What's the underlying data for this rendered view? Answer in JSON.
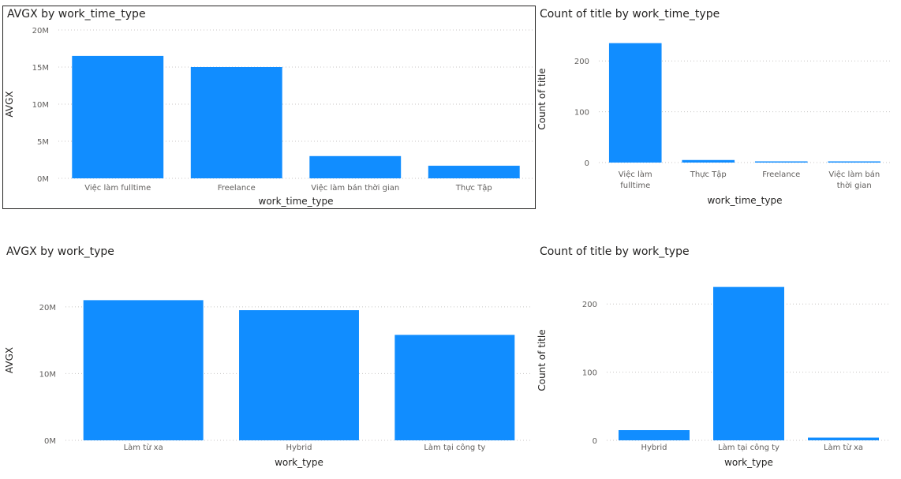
{
  "chart_data": [
    {
      "type": "bar",
      "title": "AVGX by work_time_type",
      "xlabel": "work_time_type",
      "ylabel": "AVGX",
      "categories": [
        "Việc làm fulltime",
        "Freelance",
        "Việc làm bán thời gian",
        "Thực Tập"
      ],
      "values": [
        16500000,
        15000000,
        3000000,
        1700000
      ],
      "ylim": [
        0,
        20000000
      ],
      "yticks": [
        0,
        5000000,
        10000000,
        15000000,
        20000000
      ],
      "ytick_labels": [
        "0M",
        "5M",
        "10M",
        "15M",
        "20M"
      ],
      "grid": true,
      "color": "#118DFF"
    },
    {
      "type": "bar",
      "title": "Count of title by work_time_type",
      "xlabel": "work_time_type",
      "ylabel": "Count of title",
      "categories": [
        "Việc làm fulltime",
        "Thực Tập",
        "Freelance",
        "Việc làm bán thời gian"
      ],
      "values": [
        235,
        5,
        2,
        2
      ],
      "ylim": [
        0,
        250
      ],
      "yticks": [
        0,
        100,
        200
      ],
      "ytick_labels": [
        "0",
        "100",
        "200"
      ],
      "grid": true,
      "color": "#118DFF"
    },
    {
      "type": "bar",
      "title": "AVGX by work_type",
      "xlabel": "work_type",
      "ylabel": "AVGX",
      "categories": [
        "Làm từ xa",
        "Hybrid",
        "Làm tại công ty"
      ],
      "values": [
        21000000,
        19500000,
        15800000
      ],
      "ylim": [
        0,
        24000000
      ],
      "yticks": [
        0,
        10000000,
        20000000
      ],
      "ytick_labels": [
        "0M",
        "10M",
        "20M"
      ],
      "grid": true,
      "color": "#118DFF"
    },
    {
      "type": "bar",
      "title": "Count of title by work_type",
      "xlabel": "work_type",
      "ylabel": "Count of title",
      "categories": [
        "Hybrid",
        "Làm tại công ty",
        "Làm từ xa"
      ],
      "values": [
        15,
        225,
        4
      ],
      "ylim": [
        0,
        235
      ],
      "yticks": [
        0,
        100,
        200
      ],
      "ytick_labels": [
        "0",
        "100",
        "200"
      ],
      "grid": true,
      "color": "#118DFF"
    }
  ]
}
